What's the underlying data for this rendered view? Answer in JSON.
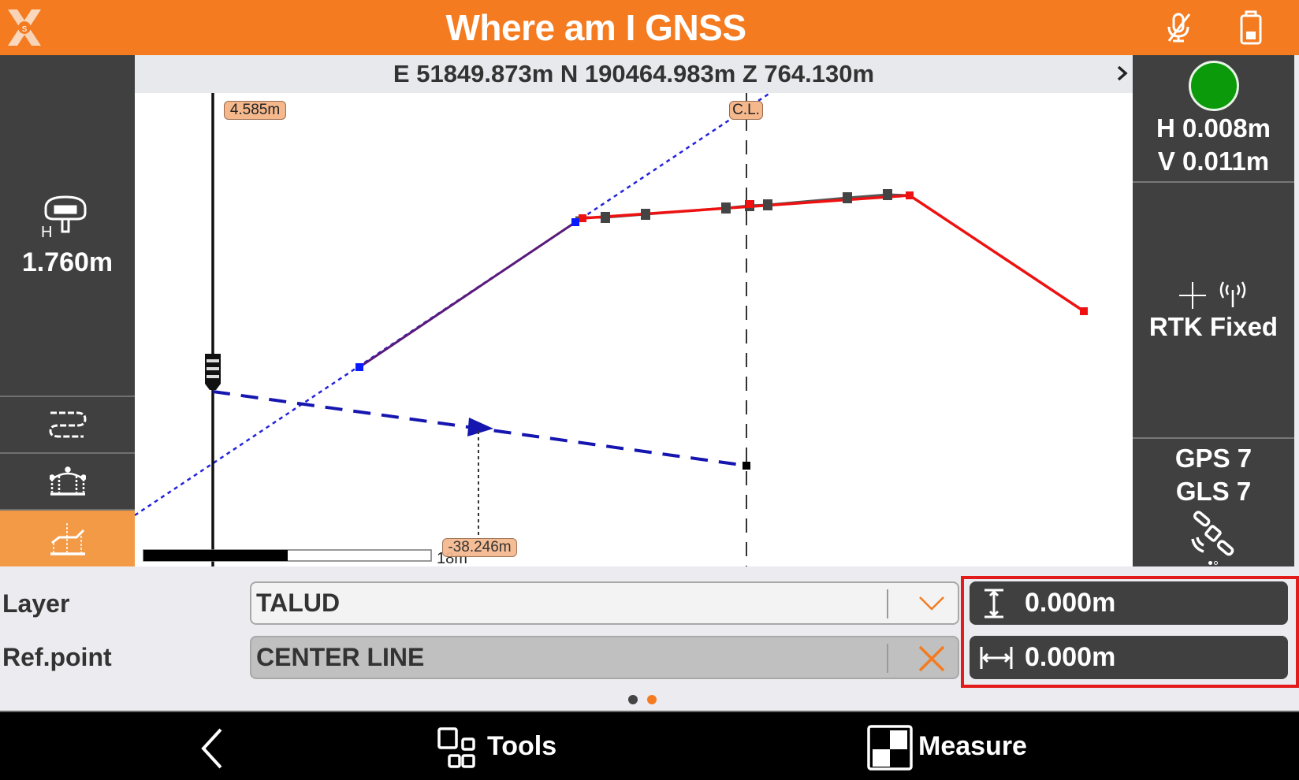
{
  "header": {
    "title": "Where am I GNSS",
    "icons": [
      "app-logo-icon",
      "mic-muted-icon",
      "battery-icon"
    ]
  },
  "coordinates": "E 51849.873m N 190464.983m Z 764.130m",
  "left_panel": {
    "antenna_height": "1.760m",
    "antenna_label": "H",
    "buttons": [
      "alignment-icon",
      "cross-section-icon",
      "profile-icon"
    ],
    "selected": "profile-icon"
  },
  "right_panel": {
    "precision_h": "H 0.008m",
    "precision_v": "V 0.011m",
    "fix_status": "RTK Fixed",
    "fix_color": "#0a9a0a",
    "gps": "GPS 7",
    "gls": "GLS 7"
  },
  "view": {
    "pole_label": "4.585m",
    "cl_label": "C.L.",
    "offset_label": "-38.246m",
    "scale_label": "18m"
  },
  "form": {
    "layer_label": "Layer",
    "layer_value": "TALUD",
    "ref_label": "Ref.point",
    "ref_value": "CENTER LINE",
    "vertical_value": "0.000m",
    "horizontal_value": "0.000m",
    "page": 2,
    "pages": 2
  },
  "nav": {
    "tools": "Tools",
    "measure": "Measure"
  },
  "colors": {
    "accent": "#f47b20",
    "panel": "#404040",
    "highlight": "#e31b1b"
  }
}
